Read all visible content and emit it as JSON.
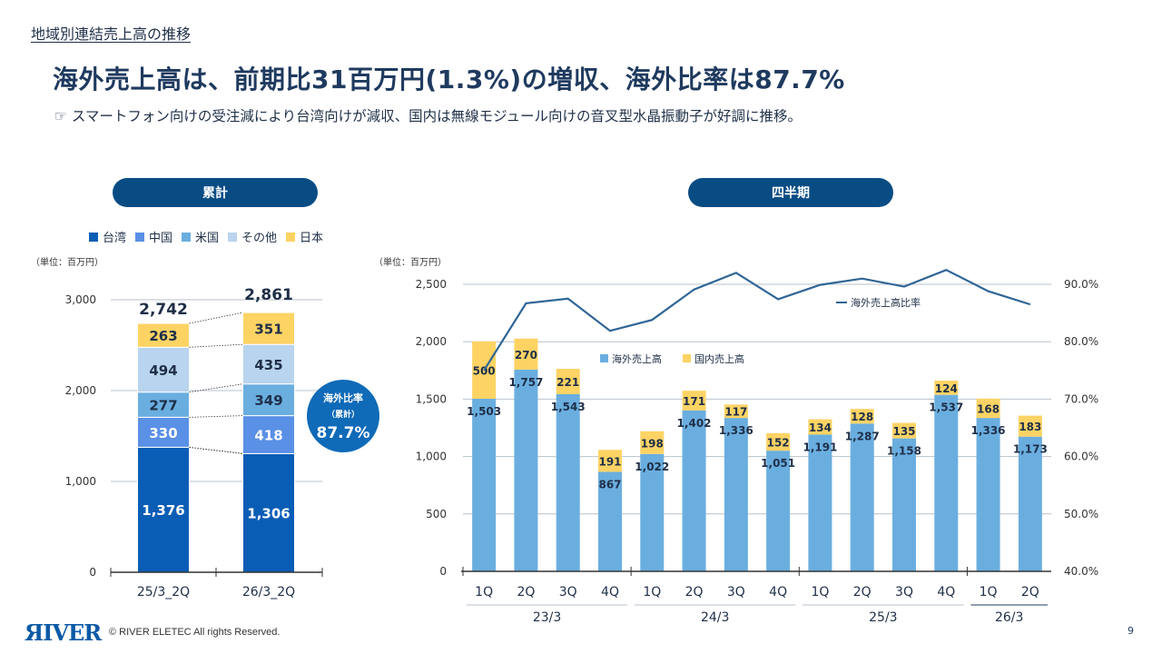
{
  "page": {
    "section_title": "地域別連結売上高の推移",
    "headline": "海外売上高は、前期比31百万円(1.3%)の増収、海外比率は87.7%",
    "subline_icon": "pointing-hand-icon",
    "subline_bullet": "☞",
    "subline": "スマートフォン向けの受注減により台湾向けが減収、国内は無線モジュール向けの音叉型水晶振動子が好調に推移。",
    "footer_logo": "ЯIVER",
    "footer_copyright": "© RIVER ELETEC All rights Reserved.",
    "page_number": "9"
  },
  "colors": {
    "taiwan": "#0a5db5",
    "china": "#5a90e6",
    "usa": "#6aaee0",
    "other": "#b8d4ee",
    "japan": "#fdd364",
    "overseas": "#6aaee0",
    "domestic": "#fdd364",
    "line": "#2f6596",
    "pill": "#094c84",
    "badge": "#0f6ab8"
  },
  "chart_data": [
    {
      "type": "bar",
      "stacked": true,
      "title": "累計",
      "unit_label": "（単位：百万円）",
      "categories": [
        "25/3_2Q",
        "26/3_2Q"
      ],
      "series": [
        {
          "name": "台湾",
          "key": "taiwan",
          "values": [
            1376,
            1306
          ],
          "labels": [
            "1,376",
            "1,306"
          ]
        },
        {
          "name": "中国",
          "key": "china",
          "values": [
            330,
            418
          ],
          "labels": [
            "330",
            "418"
          ]
        },
        {
          "name": "米国",
          "key": "usa",
          "values": [
            277,
            349
          ],
          "labels": [
            "277",
            "349"
          ]
        },
        {
          "name": "その他",
          "key": "other",
          "values": [
            494,
            435
          ],
          "labels": [
            "494",
            "435"
          ]
        },
        {
          "name": "日本",
          "key": "japan",
          "values": [
            263,
            351
          ],
          "labels": [
            "263",
            "351"
          ]
        }
      ],
      "totals": [
        "2,742",
        "2,861"
      ],
      "y_ticks": [
        "0",
        "1,000",
        "2,000",
        "3,000"
      ],
      "ylim": [
        0,
        3000
      ],
      "legend_position": "top",
      "badge": {
        "line1": "海外比率",
        "line2": "（累計）",
        "value": "87.7%"
      }
    },
    {
      "type": "bar",
      "stacked": true,
      "title": "四半期",
      "unit_label": "（単位：百万円）",
      "categories": [
        "1Q",
        "2Q",
        "3Q",
        "4Q",
        "1Q",
        "2Q",
        "3Q",
        "4Q",
        "1Q",
        "2Q",
        "3Q",
        "4Q",
        "1Q",
        "2Q"
      ],
      "groups": [
        {
          "label": "23/3",
          "count": 4
        },
        {
          "label": "24/3",
          "count": 4
        },
        {
          "label": "25/3",
          "count": 4
        },
        {
          "label": "26/3",
          "count": 2
        }
      ],
      "series": [
        {
          "name": "海外売上高",
          "key": "overseas",
          "values": [
            1503,
            1757,
            1543,
            867,
            1022,
            1402,
            1336,
            1051,
            1191,
            1287,
            1158,
            1537,
            1336,
            1173
          ],
          "labels": [
            "1,503",
            "1,757",
            "1,543",
            "867",
            "1,022",
            "1,402",
            "1,336",
            "1,051",
            "1,191",
            "1,287",
            "1,158",
            "1,537",
            "1,336",
            "1,173"
          ]
        },
        {
          "name": "国内売上高",
          "key": "domestic",
          "values": [
            500,
            270,
            221,
            191,
            198,
            171,
            117,
            152,
            134,
            128,
            135,
            124,
            168,
            183
          ],
          "labels": [
            "500",
            "270",
            "221",
            "191",
            "198",
            "171",
            "117",
            "152",
            "134",
            "128",
            "135",
            "124",
            "168",
            "183"
          ]
        }
      ],
      "line_series": {
        "name": "海外売上高比率",
        "axis": "right",
        "values": [
          75.0,
          86.7,
          87.5,
          81.9,
          83.8,
          89.1,
          92.0,
          87.4,
          89.9,
          91.0,
          89.6,
          92.5,
          88.8,
          86.5
        ]
      },
      "y_ticks": [
        "0",
        "500",
        "1,000",
        "1,500",
        "2,000",
        "2,500"
      ],
      "ylim": [
        0,
        2500
      ],
      "y2_ticks": [
        "40.0%",
        "50.0%",
        "60.0%",
        "70.0%",
        "80.0%",
        "90.0%"
      ],
      "y2lim": [
        40,
        90
      ],
      "legend_position": "center-top"
    }
  ]
}
